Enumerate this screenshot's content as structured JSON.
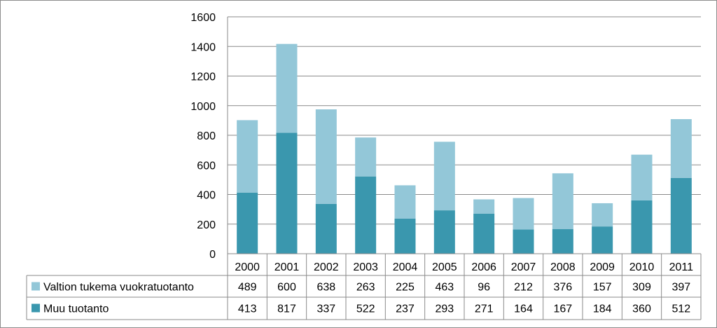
{
  "chart_data": {
    "type": "bar",
    "stacked": true,
    "categories": [
      "2000",
      "2001",
      "2002",
      "2003",
      "2004",
      "2005",
      "2006",
      "2007",
      "2008",
      "2009",
      "2010",
      "2011"
    ],
    "series": [
      {
        "name": "Muu tuotanto",
        "values": [
          413,
          817,
          337,
          522,
          237,
          293,
          271,
          164,
          167,
          184,
          360,
          512
        ],
        "color": "#3a97ae"
      },
      {
        "name": "Valtion tukema vuokratuotanto",
        "values": [
          489,
          600,
          638,
          263,
          225,
          463,
          96,
          212,
          376,
          157,
          309,
          397
        ],
        "color": "#93c7d8"
      }
    ],
    "ylim": [
      0,
      1600
    ],
    "yticks": [
      0,
      200,
      400,
      600,
      800,
      1000,
      1200,
      1400,
      1600
    ],
    "grid": true,
    "legend": "data-table-below",
    "table_rows": [
      {
        "label": "Valtion tukema vuokratuotanto",
        "values": [
          "489",
          "600",
          "638",
          "263",
          "225",
          "463",
          "96",
          "212",
          "376",
          "157",
          "309",
          "397"
        ],
        "color": "#93c7d8"
      },
      {
        "label": "Muu tuotanto",
        "values": [
          "413",
          "817",
          "337",
          "522",
          "237",
          "293",
          "271",
          "164",
          "167",
          "184",
          "360",
          "512"
        ],
        "color": "#3a97ae"
      }
    ]
  }
}
